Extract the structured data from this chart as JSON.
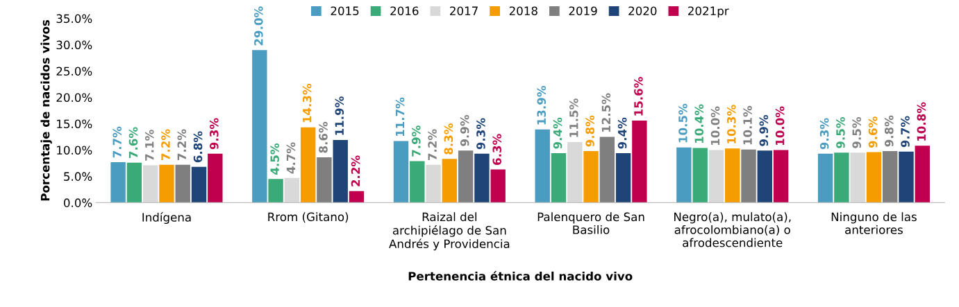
{
  "chart_data": {
    "type": "bar",
    "xlabel": "Pertenencia étnica del nacido vivo",
    "ylabel": "Porcentaje de nacidos vivos",
    "categories": [
      "Indígena",
      "Rrom (Gitano)",
      "Raizal del\narchipiélago de San\nAndrés y Providencia",
      "Palenquero de San\nBasilio",
      "Negro(a), mulato(a),\nafrocolombiano(a) o\nafrodescendiente",
      "Ninguno de las\nanteriores"
    ],
    "series": [
      {
        "name": "2015",
        "color": "#4a9cc0",
        "values": [
          7.7,
          29.0,
          11.7,
          13.9,
          10.5,
          9.3
        ],
        "value_labels": [
          "7.7%",
          "29.0%",
          "11.7%",
          "13.9%",
          "10.5%",
          "9.3%"
        ]
      },
      {
        "name": "2016",
        "color": "#3aaa78",
        "values": [
          7.6,
          4.5,
          7.9,
          9.4,
          10.4,
          9.5
        ],
        "value_labels": [
          "7.6%",
          "4.5%",
          "7.9%",
          "9.4%",
          "10.4%",
          "9.5%"
        ]
      },
      {
        "name": "2017",
        "color": "#d9d9d9",
        "values": [
          7.1,
          4.7,
          7.2,
          11.5,
          10.0,
          9.5
        ],
        "value_labels": [
          "7.1%",
          "4.7%",
          "7.2%",
          "11.5%",
          "10.0%",
          "9.5%"
        ]
      },
      {
        "name": "2018",
        "color": "#f59c00",
        "values": [
          7.2,
          14.3,
          8.3,
          9.8,
          10.3,
          9.6
        ],
        "value_labels": [
          "7.2%",
          "14.3%",
          "8.3%",
          "9.8%",
          "10.3%",
          "9.6%"
        ]
      },
      {
        "name": "2019",
        "color": "#7f7f7f",
        "values": [
          7.2,
          8.6,
          9.9,
          12.5,
          10.1,
          9.8
        ],
        "value_labels": [
          "7.2%",
          "8.6%",
          "9.9%",
          "12.5%",
          "10.1%",
          "9.8%"
        ]
      },
      {
        "name": "2020",
        "color": "#1f4478",
        "values": [
          6.8,
          11.9,
          9.3,
          9.4,
          9.9,
          9.7
        ],
        "value_labels": [
          "6.8%",
          "11.9%",
          "9.3%",
          "9.4%",
          "9.9%",
          "9.7%"
        ]
      },
      {
        "name": "2021pr",
        "color": "#c0004f",
        "values": [
          9.3,
          2.2,
          6.3,
          15.6,
          10.0,
          10.8
        ],
        "value_labels": [
          "9.3%",
          "2.2%",
          "6.3%",
          "15.6%",
          "10.0%",
          "10.8%"
        ]
      }
    ],
    "ylim": [
      0,
      35
    ],
    "yticks": [
      {
        "value": 0,
        "label": "0.0%"
      },
      {
        "value": 5,
        "label": "5.0%"
      },
      {
        "value": 10,
        "label": "10.0%"
      },
      {
        "value": 15,
        "label": "15.0%"
      },
      {
        "value": 20,
        "label": "20.0%"
      },
      {
        "value": 25,
        "label": "25.0%"
      },
      {
        "value": 30,
        "label": "30.0%"
      },
      {
        "value": 35,
        "label": "35.0%"
      }
    ],
    "grid": false,
    "legend": "top"
  }
}
